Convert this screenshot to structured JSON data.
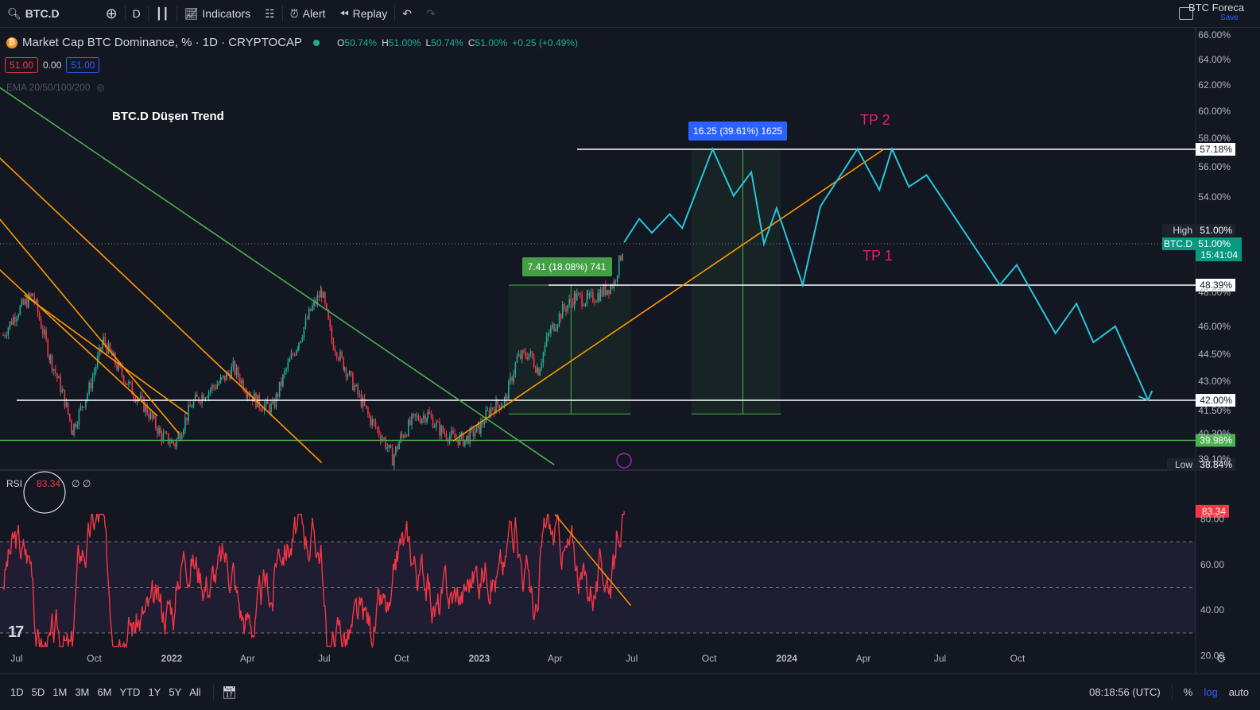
{
  "toolbar": {
    "symbol": "BTC.D",
    "interval": "D",
    "indicators_label": "Indicators",
    "alert_label": "Alert",
    "replay_label": "Replay",
    "layout_name": "BTC Foreca",
    "layout_save": "Save"
  },
  "legend": {
    "title": "Market Cap BTC Dominance, % · 1D · CRYPTOCAP",
    "o_label": "O",
    "o": "50.74%",
    "h_label": "H",
    "h": "51.00%",
    "l_label": "L",
    "l": "50.74%",
    "c_label": "C",
    "c": "51.00%",
    "change": "+0.25 (+0.49%)",
    "bid": "51.00",
    "spread": "0.00",
    "ask": "51.00",
    "ema_label": "EMA 20/50/100/200"
  },
  "rsi_legend": {
    "label": "RSI",
    "value": "83.34",
    "extra": "∅ ∅"
  },
  "annotations": {
    "title_text": "BTC.D Düşen Trend",
    "tp2": "TP 2",
    "tp1": "TP 1",
    "measure1": "7.41 (18.08%) 741",
    "measure2": "16.25 (39.61%) 1625"
  },
  "price_axis": {
    "ticks": [
      "66.00%",
      "64.00%",
      "62.00%",
      "60.00%",
      "58.00%",
      "56.00%",
      "54.00%",
      "48.00%",
      "46.00%",
      "44.50%",
      "43.00%",
      "41.50%",
      "40.30%",
      "39.10%"
    ],
    "levels": [
      "57.18%",
      "48.39%",
      "42.00%",
      "39.98%"
    ],
    "high_label": "High",
    "high_value": "51.00%",
    "current_symbol": "BTC.D",
    "current_value": "51.00%",
    "countdown": "15:41:04",
    "low_label": "Low",
    "low_value": "38.84%"
  },
  "rsi_axis": {
    "ticks": [
      "80.00",
      "60.00",
      "40.00",
      "20.00"
    ],
    "current": "83.34"
  },
  "time_axis": {
    "labels": [
      "Jul",
      "Oct",
      "2022",
      "Apr",
      "Jul",
      "Oct",
      "2023",
      "Apr",
      "Jul",
      "Oct",
      "2024",
      "Apr",
      "Jul",
      "Oct"
    ]
  },
  "bottom": {
    "ranges": [
      "1D",
      "5D",
      "1M",
      "3M",
      "6M",
      "YTD",
      "1Y",
      "5Y",
      "All"
    ],
    "clock": "08:18:56 (UTC)",
    "pct": "%",
    "log": "log",
    "auto": "auto"
  },
  "colors": {
    "bg": "#131722",
    "up": "#22ab94",
    "down": "#f23645",
    "projection": "#26c6da",
    "trend_orange": "#ff9800",
    "trend_green": "#4caf50",
    "tp": "#e91e63",
    "rsi": "#f23645"
  },
  "chart_data": {
    "type": "candlestick",
    "x_range": [
      "2021-07",
      "2024-12"
    ],
    "y_range": [
      38.84,
      66.0
    ],
    "horizontal_levels": [
      57.18,
      48.39,
      42.0,
      39.98
    ],
    "price_anchors": [
      [
        "2021-06-15",
        45.5
      ],
      [
        "2021-07-01",
        46.8
      ],
      [
        "2021-07-20",
        47.8
      ],
      [
        "2021-08-10",
        44.2
      ],
      [
        "2021-08-25",
        42.3
      ],
      [
        "2021-09-05",
        40.5
      ],
      [
        "2021-09-25",
        42.6
      ],
      [
        "2021-10-12",
        45.2
      ],
      [
        "2021-10-28",
        43.8
      ],
      [
        "2021-11-15",
        42.5
      ],
      [
        "2021-12-01",
        41.6
      ],
      [
        "2021-12-20",
        40.2
      ],
      [
        "2022-01-05",
        39.8
      ],
      [
        "2022-01-25",
        41.8
      ],
      [
        "2022-02-10",
        42.4
      ],
      [
        "2022-03-01",
        43.0
      ],
      [
        "2022-03-15",
        43.7
      ],
      [
        "2022-04-01",
        42.5
      ],
      [
        "2022-04-15",
        41.8
      ],
      [
        "2022-05-01",
        41.6
      ],
      [
        "2022-05-15",
        43.4
      ],
      [
        "2022-06-01",
        45.2
      ],
      [
        "2022-06-15",
        46.9
      ],
      [
        "2022-06-28",
        48.0
      ],
      [
        "2022-07-10",
        45.2
      ],
      [
        "2022-07-25",
        43.8
      ],
      [
        "2022-08-10",
        42.3
      ],
      [
        "2022-08-25",
        41.0
      ],
      [
        "2022-09-10",
        40.0
      ],
      [
        "2022-09-20",
        39.1
      ],
      [
        "2022-10-01",
        40.2
      ],
      [
        "2022-10-15",
        41.0
      ],
      [
        "2022-11-01",
        41.3
      ],
      [
        "2022-11-15",
        40.5
      ],
      [
        "2022-12-01",
        40.1
      ],
      [
        "2022-12-15",
        40.0
      ],
      [
        "2023-01-01",
        40.6
      ],
      [
        "2023-01-15",
        41.6
      ],
      [
        "2023-02-01",
        42.0
      ],
      [
        "2023-02-15",
        44.2
      ],
      [
        "2023-03-01",
        44.5
      ],
      [
        "2023-03-12",
        43.6
      ],
      [
        "2023-03-25",
        45.6
      ],
      [
        "2023-04-10",
        46.9
      ],
      [
        "2023-04-25",
        47.7
      ],
      [
        "2023-05-10",
        47.5
      ],
      [
        "2023-05-25",
        47.9
      ],
      [
        "2023-06-10",
        48.5
      ],
      [
        "2023-06-22",
        51.0
      ]
    ],
    "projection_path": [
      [
        "2023-06-22",
        51.0
      ],
      [
        "2023-07-10",
        52.5
      ],
      [
        "2023-07-25",
        51.6
      ],
      [
        "2023-08-15",
        52.8
      ],
      [
        "2023-08-30",
        51.9
      ],
      [
        "2023-10-05",
        57.2
      ],
      [
        "2023-10-30",
        54.0
      ],
      [
        "2023-11-20",
        55.6
      ],
      [
        "2023-12-05",
        50.9
      ],
      [
        "2023-12-20",
        53.2
      ],
      [
        "2024-01-20",
        48.4
      ],
      [
        "2024-02-10",
        53.3
      ],
      [
        "2024-03-25",
        57.2
      ],
      [
        "2024-04-20",
        54.4
      ],
      [
        "2024-05-05",
        57.2
      ],
      [
        "2024-05-25",
        54.6
      ],
      [
        "2024-06-15",
        55.4
      ],
      [
        "2024-09-10",
        48.4
      ],
      [
        "2024-09-30",
        49.6
      ],
      [
        "2024-11-15",
        45.6
      ],
      [
        "2024-12-10",
        47.3
      ],
      [
        "2024-12-30",
        45.1
      ],
      [
        "2025-01-25",
        46.0
      ],
      [
        "2025-03-05",
        42.0
      ]
    ],
    "rsi": {
      "latest": 83.34,
      "bands": [
        70,
        50,
        30
      ],
      "y_range": [
        15,
        100
      ]
    }
  }
}
